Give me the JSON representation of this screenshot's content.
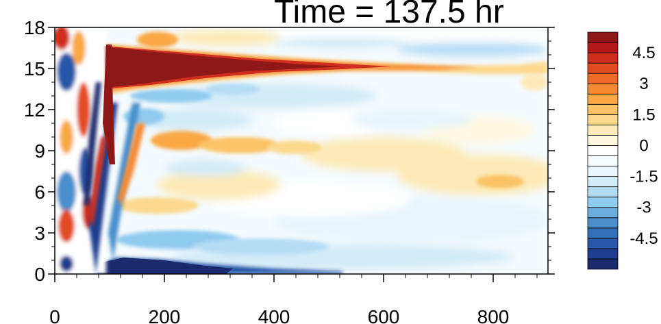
{
  "title": "Time = 137.5 hr",
  "chart_data": {
    "type": "heatmap",
    "title": "Time = 137.5 hr",
    "xlabel": "",
    "ylabel": "",
    "xlim": [
      0,
      900
    ],
    "ylim": [
      0,
      18
    ],
    "x_ticks": [
      "0",
      "200",
      "400",
      "600",
      "800"
    ],
    "x_tick_values": [
      0,
      200,
      400,
      600,
      800
    ],
    "y_ticks": [
      "0",
      "3",
      "6",
      "9",
      "12",
      "15",
      "18"
    ],
    "y_tick_values": [
      0,
      3,
      6,
      9,
      12,
      15,
      18
    ],
    "colorbar": {
      "labels": [
        "4.5",
        "3",
        "1.5",
        "0",
        "-1.5",
        "-3",
        "-4.5"
      ],
      "label_values": [
        4.5,
        3,
        1.5,
        0,
        -1.5,
        -3,
        -4.5
      ],
      "levels": [
        -5.5,
        -5,
        -4.5,
        -4,
        -3.5,
        -3,
        -2.5,
        -2,
        -1.5,
        -1,
        -0.5,
        0,
        0.5,
        1,
        1.5,
        2,
        2.5,
        3,
        3.5,
        4,
        4.5,
        5,
        5.5
      ],
      "colors": [
        "#1a2a6c",
        "#1f3e8f",
        "#2856a8",
        "#3470b8",
        "#4a8fcc",
        "#6aaee0",
        "#8fcaef",
        "#b4dcf5",
        "#d2ebf8",
        "#e8f5fb",
        "#f6fbfd",
        "#ffffff",
        "#fff8e1",
        "#fdeab8",
        "#fcd88c",
        "#fbc365",
        "#f9a845",
        "#f58a35",
        "#ee6a2a",
        "#e34b22",
        "#cf2e1f",
        "#b3191b",
        "#8e1717"
      ]
    },
    "features": [
      {
        "x": 140,
        "y": 15.6,
        "value": 5.5,
        "note": "strong positive band near top"
      },
      {
        "x": 100,
        "y": 0.5,
        "value": -5.5,
        "note": "strong negative band near bottom"
      },
      {
        "x": 260,
        "y": 9.5,
        "value": 2.5,
        "note": "positive band"
      },
      {
        "x": 350,
        "y": 13.5,
        "value": -1.5,
        "note": "negative band"
      }
    ]
  }
}
